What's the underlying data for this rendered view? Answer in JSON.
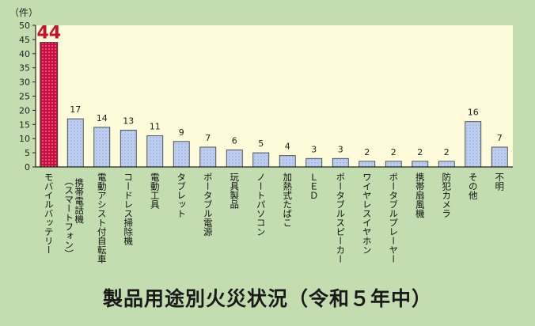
{
  "chart_data": {
    "type": "bar",
    "title": "製品用途別火災状況（令和５年中）",
    "ylabel": "（件）",
    "ylim": [
      0,
      50
    ],
    "yticks": [
      0,
      5,
      10,
      15,
      20,
      25,
      30,
      35,
      40,
      45,
      50
    ],
    "grid": false,
    "categories": [
      "モバイルバッテリー",
      "携帯電話機（スマートフォン）",
      "電動アシスト付自転車",
      "コードレス掃除機",
      "電動工具",
      "タブレット",
      "ポータブル電源",
      "玩具製品",
      "ノートパソコン",
      "加熱式たばこ",
      "ＬＥＤ",
      "ポータブルスピーカー",
      "ワイヤレスイヤホン",
      "ポータブルプレーヤー",
      "携帯扇風機",
      "防犯カメラ",
      "その他",
      "不明"
    ],
    "values": [
      44,
      17,
      14,
      13,
      11,
      9,
      7,
      6,
      5,
      4,
      3,
      3,
      2,
      2,
      2,
      2,
      16,
      7
    ],
    "highlight_index": 0,
    "colors": {
      "background": "#c3ddb1",
      "plot_background": "#fdfbd9",
      "bar_fill": "#bccdf0",
      "bar_dots": "#8ea6d4",
      "highlight_fill": "#c80a3c",
      "highlight_dots": "#f2b8c6",
      "highlight_label": "#c8102e",
      "axis": "#222222"
    }
  }
}
